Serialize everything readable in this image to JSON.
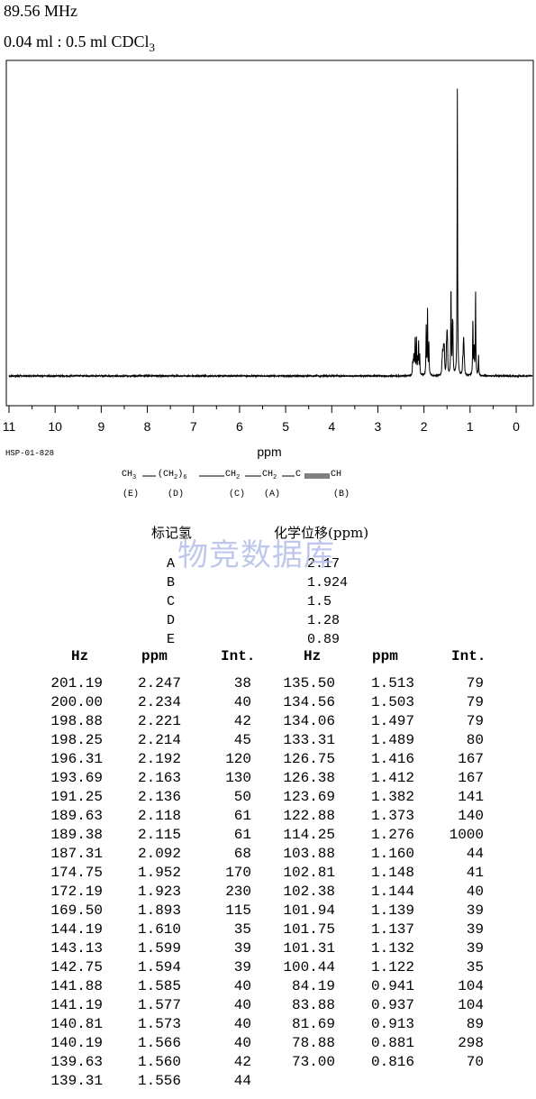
{
  "header": {
    "frequency": "89.56 MHz",
    "sample_prefix": "0.04 ml : 0.5 ml CDCl",
    "sample_subscript": "3"
  },
  "spectrum_code": "HSP-01-828",
  "structure": {
    "formula_parts": [
      "CH",
      "3",
      "(CH",
      "2",
      ")",
      "6",
      "CH",
      "2",
      "CH",
      "2",
      "C",
      "CH"
    ],
    "labels": [
      "(E)",
      "(D)",
      "(C)",
      "(A)",
      "(B)"
    ]
  },
  "assignment": {
    "header_label": "标记氢",
    "header_shift": "化学位移(ppm)",
    "rows": [
      {
        "label": "A",
        "shift": "2.17"
      },
      {
        "label": "B",
        "shift": "1.924"
      },
      {
        "label": "C",
        "shift": "1.5"
      },
      {
        "label": "D",
        "shift": "1.28"
      },
      {
        "label": "E",
        "shift": "0.89"
      }
    ]
  },
  "watermark": "物竞数据库",
  "peak_table": {
    "columns": [
      "Hz",
      "ppm",
      "Int.",
      "Hz",
      "ppm",
      "Int."
    ],
    "left": [
      [
        "201.19",
        "2.247",
        "38"
      ],
      [
        "200.00",
        "2.234",
        "40"
      ],
      [
        "198.88",
        "2.221",
        "42"
      ],
      [
        "198.25",
        "2.214",
        "45"
      ],
      [
        "196.31",
        "2.192",
        "120"
      ],
      [
        "193.69",
        "2.163",
        "130"
      ],
      [
        "191.25",
        "2.136",
        "50"
      ],
      [
        "189.63",
        "2.118",
        "61"
      ],
      [
        "189.38",
        "2.115",
        "61"
      ],
      [
        "187.31",
        "2.092",
        "68"
      ],
      [
        "174.75",
        "1.952",
        "170"
      ],
      [
        "172.19",
        "1.923",
        "230"
      ],
      [
        "169.50",
        "1.893",
        "115"
      ],
      [
        "144.19",
        "1.610",
        "35"
      ],
      [
        "143.13",
        "1.599",
        "39"
      ],
      [
        "142.75",
        "1.594",
        "39"
      ],
      [
        "141.88",
        "1.585",
        "40"
      ],
      [
        "141.19",
        "1.577",
        "40"
      ],
      [
        "140.81",
        "1.573",
        "40"
      ],
      [
        "140.19",
        "1.566",
        "40"
      ],
      [
        "139.63",
        "1.560",
        "42"
      ],
      [
        "139.31",
        "1.556",
        "44"
      ]
    ],
    "right": [
      [
        "135.50",
        "1.513",
        "79"
      ],
      [
        "134.56",
        "1.503",
        "79"
      ],
      [
        "134.06",
        "1.497",
        "79"
      ],
      [
        "133.31",
        "1.489",
        "80"
      ],
      [
        "126.75",
        "1.416",
        "167"
      ],
      [
        "126.38",
        "1.412",
        "167"
      ],
      [
        "123.69",
        "1.382",
        "141"
      ],
      [
        "122.88",
        "1.373",
        "140"
      ],
      [
        "114.25",
        "1.276",
        "1000"
      ],
      [
        "103.88",
        "1.160",
        "44"
      ],
      [
        "102.81",
        "1.148",
        "41"
      ],
      [
        "102.38",
        "1.144",
        "40"
      ],
      [
        "101.94",
        "1.139",
        "39"
      ],
      [
        "101.75",
        "1.137",
        "39"
      ],
      [
        "101.31",
        "1.132",
        "39"
      ],
      [
        "100.44",
        "1.122",
        "35"
      ],
      [
        "84.19",
        "0.941",
        "104"
      ],
      [
        "83.88",
        "0.937",
        "104"
      ],
      [
        "81.69",
        "0.913",
        "89"
      ],
      [
        "78.88",
        "0.881",
        "298"
      ],
      [
        "73.00",
        "0.816",
        "70"
      ]
    ]
  },
  "chart_data": {
    "type": "line",
    "title": "",
    "xlabel": "ppm",
    "ylabel": "",
    "xlim": [
      11,
      0
    ],
    "x_ticks": [
      "11",
      "10",
      "9",
      "8",
      "7",
      "6",
      "5",
      "4",
      "3",
      "2",
      "1",
      "0"
    ],
    "ylim": [
      0,
      1000
    ],
    "series": [
      {
        "peaks_ppm": [
          2.247,
          2.234,
          2.221,
          2.214,
          2.192,
          2.163,
          2.136,
          2.118,
          2.115,
          2.092,
          1.952,
          1.923,
          1.893,
          1.61,
          1.599,
          1.594,
          1.585,
          1.577,
          1.573,
          1.566,
          1.56,
          1.556,
          1.513,
          1.503,
          1.497,
          1.489,
          1.416,
          1.412,
          1.382,
          1.373,
          1.276,
          1.16,
          1.148,
          1.144,
          1.139,
          1.137,
          1.132,
          1.122,
          0.941,
          0.937,
          0.913,
          0.881,
          0.816
        ],
        "intensities": [
          38,
          40,
          42,
          45,
          120,
          130,
          50,
          61,
          61,
          68,
          170,
          230,
          115,
          35,
          39,
          39,
          40,
          40,
          40,
          40,
          42,
          44,
          79,
          79,
          79,
          80,
          167,
          167,
          141,
          140,
          1000,
          44,
          41,
          40,
          39,
          39,
          39,
          35,
          104,
          104,
          89,
          298,
          70
        ]
      }
    ]
  }
}
